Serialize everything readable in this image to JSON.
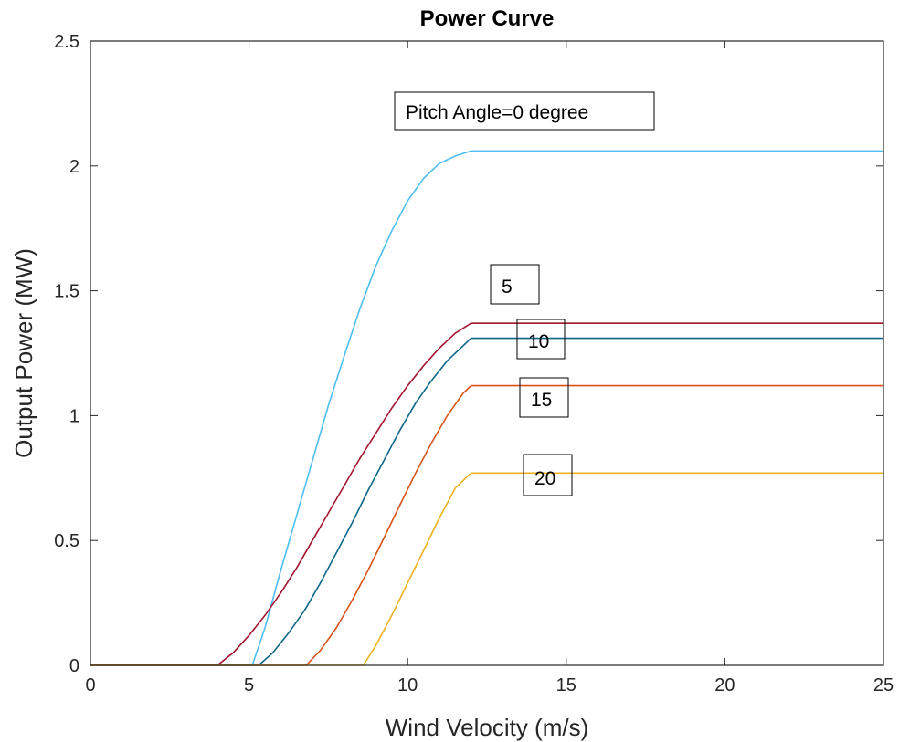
{
  "chart_data": {
    "type": "line",
    "title": "Power Curve",
    "xlabel": "Wind Velocity (m/s)",
    "ylabel": "Output Power (MW)",
    "xlim": [
      0,
      25
    ],
    "ylim": [
      0,
      2.5
    ],
    "xticks": [
      0,
      5,
      10,
      15,
      20,
      25
    ],
    "yticks": [
      0,
      0.5,
      1,
      1.5,
      2,
      2.5
    ],
    "xtick_labels": [
      "0",
      "5",
      "10",
      "15",
      "20",
      "25"
    ],
    "ytick_labels": [
      "0",
      "0.5",
      "1",
      "1.5",
      "2",
      "2.5"
    ],
    "grid": false,
    "series": [
      {
        "label": "Pitch Angle=0 degree",
        "color": "#4DBEEE",
        "x": [
          0,
          5.1,
          5.5,
          6,
          6.5,
          7,
          7.5,
          8,
          8.5,
          9,
          9.5,
          10,
          10.5,
          11,
          11.5,
          12,
          25
        ],
        "y": [
          0,
          0,
          0.15,
          0.38,
          0.6,
          0.82,
          1.04,
          1.24,
          1.43,
          1.6,
          1.74,
          1.86,
          1.95,
          2.01,
          2.04,
          2.06,
          2.06
        ]
      },
      {
        "label": "5",
        "color": "#A2142F",
        "x": [
          0,
          4,
          4.5,
          5,
          5.5,
          6,
          6.5,
          7,
          7.5,
          8,
          8.5,
          9,
          9.5,
          10,
          10.5,
          11,
          11.5,
          12,
          25
        ],
        "y": [
          0,
          0,
          0.05,
          0.12,
          0.2,
          0.29,
          0.39,
          0.5,
          0.61,
          0.72,
          0.83,
          0.93,
          1.03,
          1.12,
          1.2,
          1.27,
          1.33,
          1.37,
          1.37
        ]
      },
      {
        "label": "10",
        "color": "#0E6789",
        "x": [
          0,
          5.3,
          5.75,
          6.25,
          6.75,
          7.25,
          7.75,
          8.25,
          8.75,
          9.25,
          9.75,
          10.25,
          10.75,
          11.25,
          11.75,
          12,
          25
        ],
        "y": [
          0,
          0,
          0.05,
          0.13,
          0.22,
          0.33,
          0.45,
          0.57,
          0.7,
          0.82,
          0.94,
          1.05,
          1.14,
          1.22,
          1.28,
          1.31,
          1.31
        ]
      },
      {
        "label": "15",
        "color": "#D95319",
        "x": [
          0,
          6.8,
          7.25,
          7.75,
          8.25,
          8.75,
          9.25,
          9.75,
          10.25,
          10.75,
          11.25,
          11.75,
          12,
          25
        ],
        "y": [
          0,
          0,
          0.06,
          0.15,
          0.26,
          0.38,
          0.51,
          0.64,
          0.77,
          0.89,
          1,
          1.09,
          1.12,
          1.12
        ]
      },
      {
        "label": "20",
        "color": "#EDB120",
        "x": [
          0,
          8.6,
          9,
          9.5,
          10,
          10.5,
          11,
          11.5,
          12,
          25
        ],
        "y": [
          0,
          0,
          0.08,
          0.2,
          0.33,
          0.46,
          0.59,
          0.71,
          0.77,
          0.77
        ]
      }
    ],
    "annotations": [
      {
        "text": "Pitch Angle=0 degree",
        "series_index": 0
      },
      {
        "text": "5",
        "series_index": 1
      },
      {
        "text": "10",
        "series_index": 2
      },
      {
        "text": "15",
        "series_index": 3
      },
      {
        "text": "20",
        "series_index": 4
      }
    ]
  }
}
